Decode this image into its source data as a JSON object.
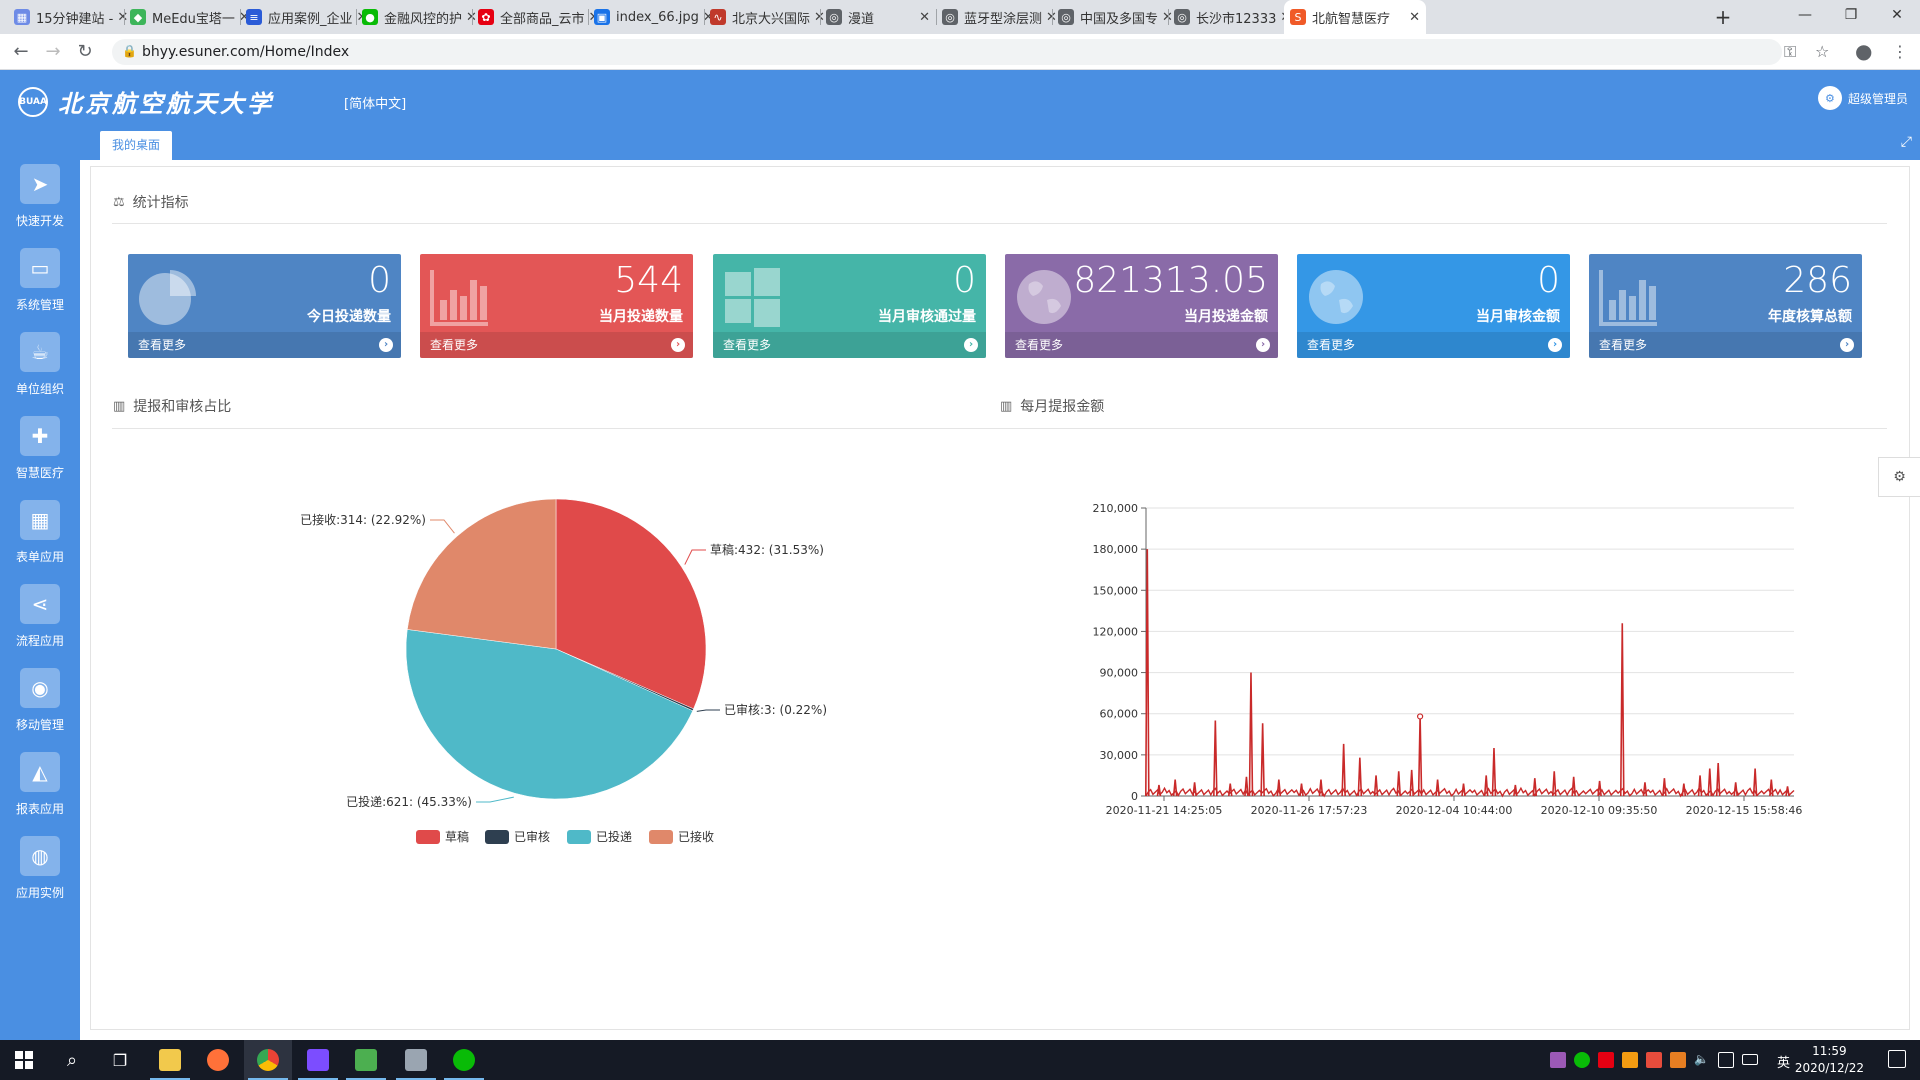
{
  "browser": {
    "tabs": [
      {
        "title": "15分钟建站 -",
        "color": "#6e8be6",
        "glyph": "▦"
      },
      {
        "title": "MeEdu宝塔一",
        "color": "#3db55a",
        "glyph": "◆"
      },
      {
        "title": "应用案例_企业",
        "color": "#2a5bd7",
        "glyph": "≡"
      },
      {
        "title": "金融风控的护",
        "color": "#09bb07",
        "glyph": "●"
      },
      {
        "title": "全部商品_云市",
        "color": "#e60012",
        "glyph": "✿"
      },
      {
        "title": "index_66.jpg",
        "color": "#1a73e8",
        "glyph": "▣"
      },
      {
        "title": "北京大兴国际",
        "color": "#c0392b",
        "glyph": "∿"
      },
      {
        "title": "漫道",
        "color": "#5f6368",
        "glyph": "◎"
      },
      {
        "title": "蓝牙型涂层测",
        "color": "#5f6368",
        "glyph": "◎"
      },
      {
        "title": "中国及多国专",
        "color": "#5f6368",
        "glyph": "◎"
      },
      {
        "title": "长沙市12333",
        "color": "#5f6368",
        "glyph": "◎"
      },
      {
        "title": "北航智慧医疗",
        "color": "#f05a28",
        "glyph": "S"
      }
    ],
    "url": "bhyy.esuner.com/Home/Index"
  },
  "header": {
    "university": "北京航空航天大学",
    "seal": "BUAA",
    "language": "[简体中文]",
    "user": "超级管理员",
    "desk_tab": "我的桌面"
  },
  "sidebar": {
    "items": [
      {
        "label": "快速开发",
        "icon": "paper-plane-icon"
      },
      {
        "label": "系统管理",
        "icon": "monitor-icon"
      },
      {
        "label": "单位组织",
        "icon": "coffee-icon"
      },
      {
        "label": "智慧医疗",
        "icon": "ambulance-icon"
      },
      {
        "label": "表单应用",
        "icon": "table-icon"
      },
      {
        "label": "流程应用",
        "icon": "share-icon"
      },
      {
        "label": "移动管理",
        "icon": "android-icon"
      },
      {
        "label": "报表应用",
        "icon": "area-chart-icon"
      },
      {
        "label": "应用实例",
        "icon": "globe-icon"
      }
    ]
  },
  "stats": {
    "section_title": "统计指标",
    "more_label": "查看更多",
    "cards": [
      {
        "value": "0",
        "label": "今日投递数量",
        "color": "#4f85c4",
        "icon": "pie-chart-icon"
      },
      {
        "value": "544",
        "label": "当月投递数量",
        "color": "#e35656",
        "icon": "bar-chart-icon"
      },
      {
        "value": "0",
        "label": "当月审核通过量",
        "color": "#45b5a8",
        "icon": "windows-icon"
      },
      {
        "value": "821313.05",
        "label": "当月投递金额",
        "color": "#8a6ba8",
        "icon": "globe-icon"
      },
      {
        "value": "0",
        "label": "当月审核金额",
        "color": "#3497e6",
        "icon": "globe-icon"
      },
      {
        "value": "286",
        "label": "年度核算总额",
        "color": "#4f85c4",
        "icon": "bar-chart-icon"
      }
    ]
  },
  "pie_section": {
    "title": "提报和审核占比"
  },
  "line_section": {
    "title": "每月提报金额"
  },
  "chart_data": [
    {
      "type": "pie",
      "slices": [
        {
          "name": "草稿",
          "value": 432,
          "label": "草稿:432: (31.53%)",
          "color": "#e04a4a"
        },
        {
          "name": "已审核",
          "value": 3,
          "label": "已审核:3: (0.22%)",
          "color": "#2e3f50"
        },
        {
          "name": "已投递",
          "value": 621,
          "label": "已投递:621: (45.33%)",
          "color": "#4fb9c8"
        },
        {
          "name": "已接收",
          "value": 314,
          "label": "已接收:314: (22.92%)",
          "color": "#e0886a"
        }
      ]
    },
    {
      "type": "line",
      "color": "#c92a2a",
      "ylim": [
        0,
        210000
      ],
      "yticks": [
        "0",
        "30,000",
        "60,000",
        "90,000",
        "120,000",
        "150,000",
        "180,000",
        "210,000"
      ],
      "xticks": [
        "2020-11-21 14:25:05",
        "2020-11-26 17:57:23",
        "2020-12-04 10:44:00",
        "2020-12-10 09:35:50",
        "2020-12-15 15:58:46"
      ],
      "grid": true,
      "peaks": [
        {
          "t": 0.002,
          "v": 180000
        },
        {
          "t": 0.02,
          "v": 8000
        },
        {
          "t": 0.045,
          "v": 12000
        },
        {
          "t": 0.075,
          "v": 10000
        },
        {
          "t": 0.107,
          "v": 55000
        },
        {
          "t": 0.13,
          "v": 9000
        },
        {
          "t": 0.155,
          "v": 14000
        },
        {
          "t": 0.162,
          "v": 90000
        },
        {
          "t": 0.18,
          "v": 53000
        },
        {
          "t": 0.205,
          "v": 12000
        },
        {
          "t": 0.24,
          "v": 9000
        },
        {
          "t": 0.27,
          "v": 12000
        },
        {
          "t": 0.305,
          "v": 38000
        },
        {
          "t": 0.33,
          "v": 28000
        },
        {
          "t": 0.355,
          "v": 15000
        },
        {
          "t": 0.39,
          "v": 18000
        },
        {
          "t": 0.41,
          "v": 19000
        },
        {
          "t": 0.423,
          "v": 58000
        },
        {
          "t": 0.45,
          "v": 12000
        },
        {
          "t": 0.49,
          "v": 9000
        },
        {
          "t": 0.525,
          "v": 15000
        },
        {
          "t": 0.537,
          "v": 35000
        },
        {
          "t": 0.57,
          "v": 8000
        },
        {
          "t": 0.6,
          "v": 13000
        },
        {
          "t": 0.63,
          "v": 18000
        },
        {
          "t": 0.66,
          "v": 14000
        },
        {
          "t": 0.7,
          "v": 11000
        },
        {
          "t": 0.735,
          "v": 126000
        },
        {
          "t": 0.77,
          "v": 10000
        },
        {
          "t": 0.8,
          "v": 13000
        },
        {
          "t": 0.83,
          "v": 9000
        },
        {
          "t": 0.855,
          "v": 15000
        },
        {
          "t": 0.87,
          "v": 20000
        },
        {
          "t": 0.883,
          "v": 24000
        },
        {
          "t": 0.91,
          "v": 10000
        },
        {
          "t": 0.94,
          "v": 20000
        },
        {
          "t": 0.965,
          "v": 12000
        },
        {
          "t": 0.99,
          "v": 7000
        }
      ],
      "marker": {
        "t": 0.423,
        "v": 58000
      }
    }
  ],
  "taskbar": {
    "time": "11:59",
    "date": "2020/12/22",
    "ime": "英"
  }
}
